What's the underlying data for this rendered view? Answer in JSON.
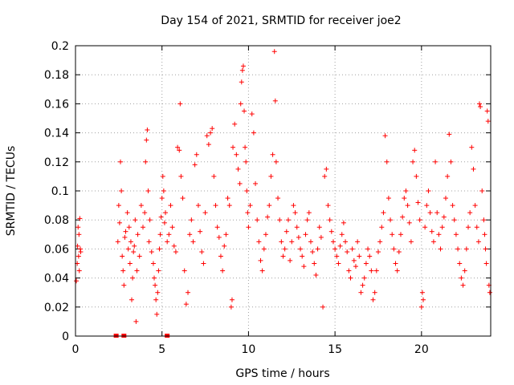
{
  "chart_data": {
    "type": "scatter",
    "title": "Day 154 of 2021, SRMTID for receiver joe2",
    "xlabel": "GPS time / hours",
    "ylabel": "SRMTID / TECUs",
    "xlim": [
      0,
      24
    ],
    "ylim": [
      0,
      0.2
    ],
    "xticks": [
      0,
      5,
      10,
      15,
      20
    ],
    "xtick_labels": [
      "0",
      "5",
      "10",
      "15",
      "20"
    ],
    "yticks": [
      0,
      0.02,
      0.04,
      0.06,
      0.08,
      0.1,
      0.12,
      0.14,
      0.16,
      0.18,
      0.2
    ],
    "ytick_labels": [
      "0",
      "0.02",
      "0.04",
      "0.06",
      "0.08",
      "0.1",
      "0.12",
      "0.14",
      "0.16",
      "0.18",
      "0.2"
    ],
    "grid": true,
    "marker": "plus",
    "color": "#ff0000",
    "series": [
      {
        "name": "SRMTID",
        "points": [
          [
            0.05,
            0.038
          ],
          [
            0.1,
            0.05
          ],
          [
            0.12,
            0.062
          ],
          [
            0.15,
            0.075
          ],
          [
            0.18,
            0.055
          ],
          [
            0.2,
            0.07
          ],
          [
            0.22,
            0.045
          ],
          [
            0.25,
            0.081
          ],
          [
            0.28,
            0.06
          ],
          [
            0.3,
            0.058
          ],
          [
            2.45,
            0.065
          ],
          [
            2.5,
            0.09
          ],
          [
            2.55,
            0.078
          ],
          [
            2.6,
            0.12
          ],
          [
            2.65,
            0.1
          ],
          [
            2.7,
            0.055
          ],
          [
            2.75,
            0.045
          ],
          [
            2.8,
            0.035
          ],
          [
            2.85,
            0.068
          ],
          [
            2.9,
            0.072
          ],
          [
            3.0,
            0.085
          ],
          [
            3.05,
            0.06
          ],
          [
            3.1,
            0.075
          ],
          [
            3.15,
            0.05
          ],
          [
            3.2,
            0.065
          ],
          [
            3.25,
            0.025
          ],
          [
            3.3,
            0.04
          ],
          [
            3.35,
            0.058
          ],
          [
            3.4,
            0.062
          ],
          [
            3.45,
            0.08
          ],
          [
            3.5,
            0.01
          ],
          [
            3.55,
            0.045
          ],
          [
            3.6,
            0.07
          ],
          [
            3.7,
            0.055
          ],
          [
            3.8,
            0.09
          ],
          [
            3.9,
            0.075
          ],
          [
            4.0,
            0.085
          ],
          [
            4.05,
            0.12
          ],
          [
            4.1,
            0.135
          ],
          [
            4.15,
            0.142
          ],
          [
            4.2,
            0.1
          ],
          [
            4.25,
            0.065
          ],
          [
            4.3,
            0.08
          ],
          [
            4.4,
            0.058
          ],
          [
            4.5,
            0.05
          ],
          [
            4.55,
            0.04
          ],
          [
            4.6,
            0.035
          ],
          [
            4.65,
            0.025
          ],
          [
            4.7,
            0.015
          ],
          [
            4.75,
            0.03
          ],
          [
            4.8,
            0.045
          ],
          [
            4.85,
            0.06
          ],
          [
            4.9,
            0.07
          ],
          [
            4.95,
            0.082
          ],
          [
            5.0,
            0.095
          ],
          [
            5.05,
            0.11
          ],
          [
            5.1,
            0.1
          ],
          [
            5.15,
            0.078
          ],
          [
            5.2,
            0.085
          ],
          [
            5.3,
            0.065
          ],
          [
            5.4,
            0.07
          ],
          [
            5.5,
            0.09
          ],
          [
            5.6,
            0.075
          ],
          [
            5.7,
            0.062
          ],
          [
            5.8,
            0.058
          ],
          [
            5.9,
            0.13
          ],
          [
            6.0,
            0.128
          ],
          [
            6.05,
            0.16
          ],
          [
            6.1,
            0.11
          ],
          [
            6.2,
            0.095
          ],
          [
            6.3,
            0.045
          ],
          [
            6.4,
            0.022
          ],
          [
            6.5,
            0.03
          ],
          [
            6.6,
            0.07
          ],
          [
            6.7,
            0.08
          ],
          [
            6.8,
            0.065
          ],
          [
            6.9,
            0.118
          ],
          [
            7.0,
            0.125
          ],
          [
            7.1,
            0.09
          ],
          [
            7.2,
            0.072
          ],
          [
            7.3,
            0.058
          ],
          [
            7.4,
            0.05
          ],
          [
            7.5,
            0.085
          ],
          [
            7.6,
            0.138
          ],
          [
            7.7,
            0.132
          ],
          [
            7.8,
            0.14
          ],
          [
            7.9,
            0.143
          ],
          [
            8.0,
            0.11
          ],
          [
            8.1,
            0.09
          ],
          [
            8.2,
            0.075
          ],
          [
            8.3,
            0.068
          ],
          [
            8.4,
            0.055
          ],
          [
            8.5,
            0.045
          ],
          [
            8.6,
            0.062
          ],
          [
            8.7,
            0.07
          ],
          [
            8.8,
            0.095
          ],
          [
            8.9,
            0.09
          ],
          [
            9.0,
            0.02
          ],
          [
            9.05,
            0.025
          ],
          [
            9.1,
            0.13
          ],
          [
            9.2,
            0.146
          ],
          [
            9.3,
            0.125
          ],
          [
            9.4,
            0.115
          ],
          [
            9.5,
            0.105
          ],
          [
            9.55,
            0.16
          ],
          [
            9.6,
            0.175
          ],
          [
            9.65,
            0.183
          ],
          [
            9.7,
            0.186
          ],
          [
            9.75,
            0.155
          ],
          [
            9.8,
            0.13
          ],
          [
            9.85,
            0.12
          ],
          [
            9.9,
            0.1
          ],
          [
            9.95,
            0.085
          ],
          [
            10.0,
            0.075
          ],
          [
            10.1,
            0.09
          ],
          [
            10.2,
            0.153
          ],
          [
            10.3,
            0.14
          ],
          [
            10.4,
            0.105
          ],
          [
            10.5,
            0.08
          ],
          [
            10.6,
            0.065
          ],
          [
            10.7,
            0.052
          ],
          [
            10.8,
            0.045
          ],
          [
            10.9,
            0.06
          ],
          [
            11.0,
            0.07
          ],
          [
            11.1,
            0.082
          ],
          [
            11.2,
            0.09
          ],
          [
            11.3,
            0.11
          ],
          [
            11.4,
            0.125
          ],
          [
            11.5,
            0.196
          ],
          [
            11.55,
            0.162
          ],
          [
            11.6,
            0.12
          ],
          [
            11.7,
            0.095
          ],
          [
            11.8,
            0.08
          ],
          [
            11.9,
            0.065
          ],
          [
            12.0,
            0.055
          ],
          [
            12.1,
            0.06
          ],
          [
            12.2,
            0.072
          ],
          [
            12.3,
            0.08
          ],
          [
            12.4,
            0.052
          ],
          [
            12.5,
            0.065
          ],
          [
            12.6,
            0.09
          ],
          [
            12.7,
            0.085
          ],
          [
            12.8,
            0.075
          ],
          [
            12.9,
            0.068
          ],
          [
            13.0,
            0.06
          ],
          [
            13.1,
            0.055
          ],
          [
            13.2,
            0.048
          ],
          [
            13.3,
            0.07
          ],
          [
            13.4,
            0.08
          ],
          [
            13.5,
            0.085
          ],
          [
            13.6,
            0.065
          ],
          [
            13.7,
            0.058
          ],
          [
            13.8,
            0.05
          ],
          [
            13.9,
            0.042
          ],
          [
            14.0,
            0.06
          ],
          [
            14.1,
            0.075
          ],
          [
            14.2,
            0.068
          ],
          [
            14.3,
            0.02
          ],
          [
            14.4,
            0.11
          ],
          [
            14.5,
            0.115
          ],
          [
            14.6,
            0.09
          ],
          [
            14.7,
            0.08
          ],
          [
            14.8,
            0.072
          ],
          [
            14.9,
            0.065
          ],
          [
            15.0,
            0.06
          ],
          [
            15.1,
            0.055
          ],
          [
            15.2,
            0.05
          ],
          [
            15.3,
            0.062
          ],
          [
            15.4,
            0.07
          ],
          [
            15.5,
            0.078
          ],
          [
            15.6,
            0.065
          ],
          [
            15.7,
            0.058
          ],
          [
            15.8,
            0.045
          ],
          [
            15.9,
            0.04
          ],
          [
            16.0,
            0.06
          ],
          [
            16.1,
            0.052
          ],
          [
            16.2,
            0.048
          ],
          [
            16.3,
            0.065
          ],
          [
            16.4,
            0.055
          ],
          [
            16.5,
            0.03
          ],
          [
            16.6,
            0.035
          ],
          [
            16.7,
            0.04
          ],
          [
            16.8,
            0.05
          ],
          [
            16.9,
            0.06
          ],
          [
            17.0,
            0.055
          ],
          [
            17.1,
            0.045
          ],
          [
            17.2,
            0.025
          ],
          [
            17.3,
            0.03
          ],
          [
            17.4,
            0.045
          ],
          [
            17.5,
            0.058
          ],
          [
            17.6,
            0.065
          ],
          [
            17.7,
            0.075
          ],
          [
            17.8,
            0.085
          ],
          [
            17.9,
            0.138
          ],
          [
            18.0,
            0.12
          ],
          [
            18.1,
            0.095
          ],
          [
            18.2,
            0.08
          ],
          [
            18.3,
            0.07
          ],
          [
            18.4,
            0.06
          ],
          [
            18.5,
            0.05
          ],
          [
            18.6,
            0.045
          ],
          [
            18.7,
            0.058
          ],
          [
            18.8,
            0.07
          ],
          [
            18.9,
            0.082
          ],
          [
            19.0,
            0.095
          ],
          [
            19.1,
            0.1
          ],
          [
            19.2,
            0.09
          ],
          [
            19.3,
            0.078
          ],
          [
            19.4,
            0.065
          ],
          [
            19.5,
            0.12
          ],
          [
            19.6,
            0.128
          ],
          [
            19.7,
            0.11
          ],
          [
            19.8,
            0.092
          ],
          [
            19.9,
            0.08
          ],
          [
            20.0,
            0.02
          ],
          [
            20.05,
            0.03
          ],
          [
            20.1,
            0.025
          ],
          [
            20.2,
            0.075
          ],
          [
            20.3,
            0.09
          ],
          [
            20.4,
            0.1
          ],
          [
            20.5,
            0.085
          ],
          [
            20.6,
            0.072
          ],
          [
            20.7,
            0.065
          ],
          [
            20.8,
            0.12
          ],
          [
            20.9,
            0.085
          ],
          [
            21.0,
            0.07
          ],
          [
            21.1,
            0.06
          ],
          [
            21.2,
            0.075
          ],
          [
            21.3,
            0.082
          ],
          [
            21.4,
            0.095
          ],
          [
            21.5,
            0.11
          ],
          [
            21.6,
            0.139
          ],
          [
            21.7,
            0.12
          ],
          [
            21.8,
            0.09
          ],
          [
            21.9,
            0.08
          ],
          [
            22.0,
            0.07
          ],
          [
            22.1,
            0.06
          ],
          [
            22.2,
            0.05
          ],
          [
            22.3,
            0.04
          ],
          [
            22.4,
            0.035
          ],
          [
            22.5,
            0.045
          ],
          [
            22.6,
            0.06
          ],
          [
            22.7,
            0.075
          ],
          [
            22.8,
            0.085
          ],
          [
            22.9,
            0.13
          ],
          [
            23.0,
            0.115
          ],
          [
            23.1,
            0.09
          ],
          [
            23.2,
            0.075
          ],
          [
            23.3,
            0.065
          ],
          [
            23.35,
            0.16
          ],
          [
            23.4,
            0.158
          ],
          [
            23.5,
            0.1
          ],
          [
            23.6,
            0.08
          ],
          [
            23.65,
            0.07
          ],
          [
            23.7,
            0.06
          ],
          [
            23.75,
            0.05
          ],
          [
            23.8,
            0.155
          ],
          [
            23.85,
            0.148
          ],
          [
            23.9,
            0.035
          ],
          [
            23.95,
            0.03
          ]
        ]
      }
    ],
    "zero_points": [
      2.35,
      2.8,
      5.3
    ]
  }
}
